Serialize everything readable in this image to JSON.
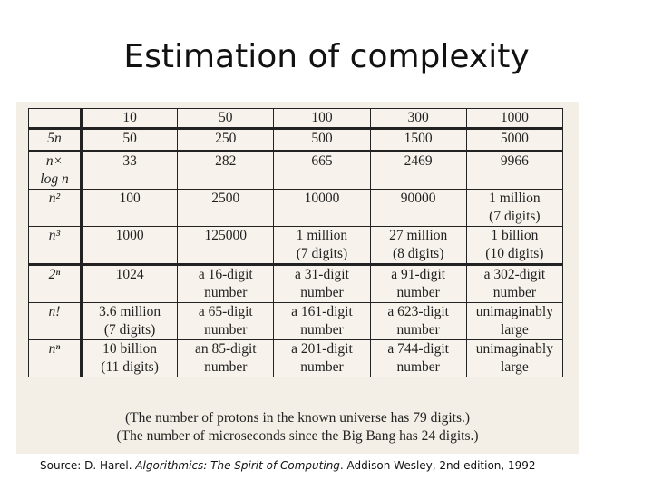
{
  "title": "Estimation of complexity",
  "table": {
    "header": [
      "",
      "10",
      "50",
      "100",
      "300",
      "1000"
    ],
    "rows": [
      {
        "label": "5n",
        "cells": [
          "50",
          "250",
          "500",
          "1500",
          "5000"
        ]
      },
      {
        "label": "n×\nlog n",
        "cells": [
          "33",
          "282",
          "665",
          "2469",
          "9966"
        ]
      },
      {
        "label": "n²",
        "cells": [
          "100",
          "2500",
          "10000",
          "90000",
          "1 million\n(7 digits)"
        ]
      },
      {
        "label": "n³",
        "cells": [
          "1000",
          "125000",
          "1 million\n(7 digits)",
          "27 million\n(8 digits)",
          "1 billion\n(10 digits)"
        ]
      },
      {
        "label": "2ⁿ",
        "cells": [
          "1024",
          "a 16-digit\nnumber",
          "a 31-digit\nnumber",
          "a 91-digit\nnumber",
          "a 302-digit\nnumber"
        ]
      },
      {
        "label": "n!",
        "cells": [
          "3.6 million\n(7 digits)",
          "a 65-digit\nnumber",
          "a 161-digit\nnumber",
          "a 623-digit\nnumber",
          "unimaginably\nlarge"
        ]
      },
      {
        "label": "nⁿ",
        "cells": [
          "10 billion\n(11 digits)",
          "an 85-digit\nnumber",
          "a 201-digit\nnumber",
          "a 744-digit\nnumber",
          "unimaginably\nlarge"
        ]
      }
    ]
  },
  "notes": [
    "(The number of protons in the known universe has 79 digits.)",
    "(The number of microseconds since the Big Bang has 24 digits.)"
  ],
  "source": {
    "prefix": "Source: D. Harel. ",
    "book": "Algorithmics: The Spirit of Computing",
    "suffix": ". Addison-Wesley, 2nd edition, 1992"
  }
}
